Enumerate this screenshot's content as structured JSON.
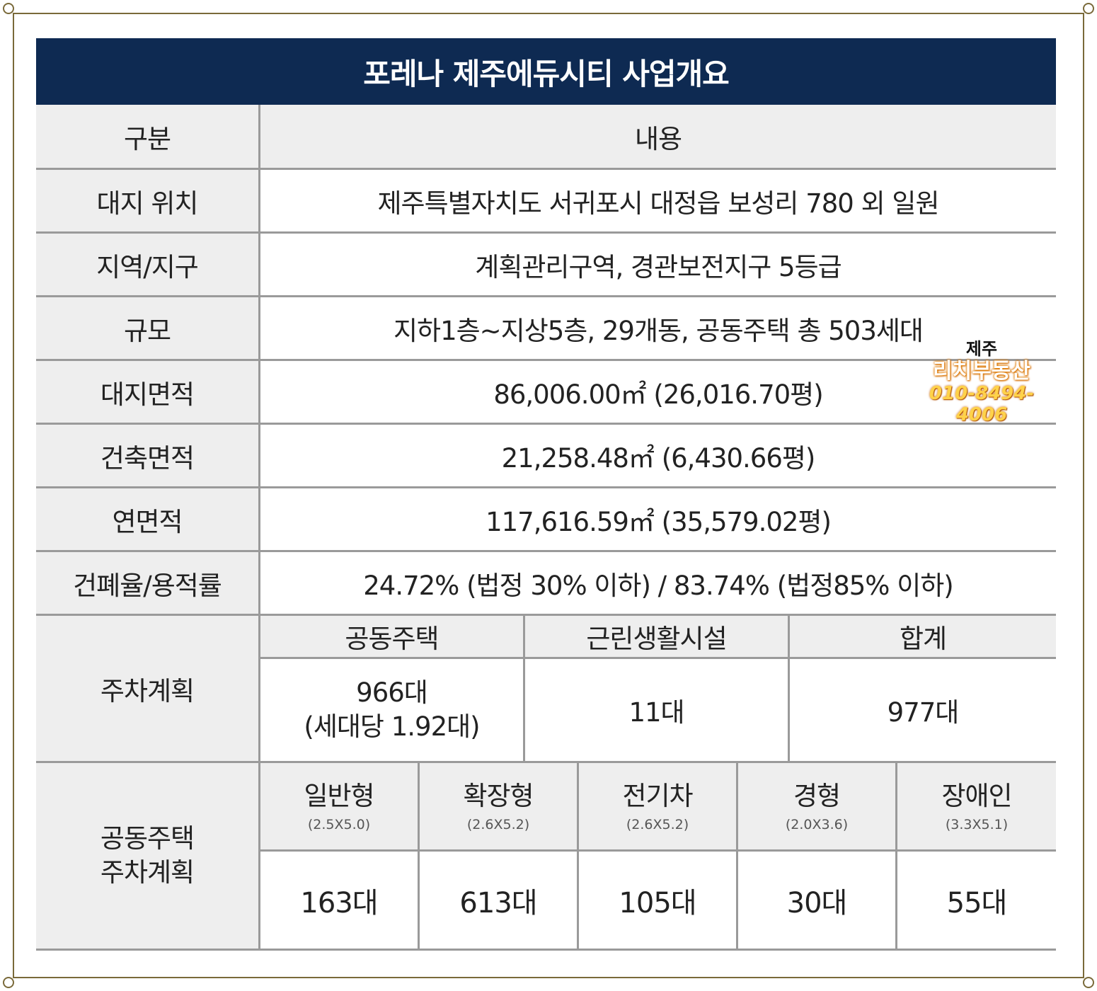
{
  "title": "포레나 제주에듀시티 사업개요",
  "header": {
    "category": "구분",
    "content": "내용"
  },
  "rows": [
    {
      "label": "대지 위치",
      "value": "제주특별자치도 서귀포시 대정읍 보성리 780 외 일원"
    },
    {
      "label": "지역/지구",
      "value": "계획관리구역, 경관보전지구 5등급"
    },
    {
      "label": "규모",
      "value": "지하1층~지상5층, 29개동, 공동주택 총 503세대"
    },
    {
      "label": "대지면적",
      "value": "86,006.00㎡ (26,016.70평)"
    },
    {
      "label": "건축면적",
      "value": "21,258.48㎡ (6,430.66평)"
    },
    {
      "label": "연면적",
      "value": "117,616.59㎡ (35,579.02평)"
    },
    {
      "label": "건폐율/용적률",
      "value": "24.72% (법정 30% 이하) / 83.74% (법정85% 이하)"
    }
  ],
  "parking": {
    "label": "주차계획",
    "headers": [
      "공동주택",
      "근린생활시설",
      "합계"
    ],
    "housing": {
      "count": "966대",
      "note": "(세대당 1.92대)"
    },
    "commercial": "11대",
    "total": "977대"
  },
  "housing_parking": {
    "label_line1": "공동주택",
    "label_line2": "주차계획",
    "types": [
      {
        "name": "일반형",
        "size": "(2.5X5.0)",
        "count": "163대"
      },
      {
        "name": "확장형",
        "size": "(2.6X5.2)",
        "count": "613대"
      },
      {
        "name": "전기차",
        "size": "(2.6X5.2)",
        "count": "105대"
      },
      {
        "name": "경형",
        "size": "(2.0X3.6)",
        "count": "30대"
      },
      {
        "name": "장애인",
        "size": "(3.3X5.1)",
        "count": "55대"
      }
    ]
  },
  "watermark": {
    "city": "제주",
    "name": "리치부동산",
    "phone": "010-8494-4006"
  },
  "colors": {
    "header_bg": "#0e2a52",
    "label_bg": "#eeeeee",
    "rule": "#9a9a9a",
    "frame": "#7a6a3a"
  }
}
